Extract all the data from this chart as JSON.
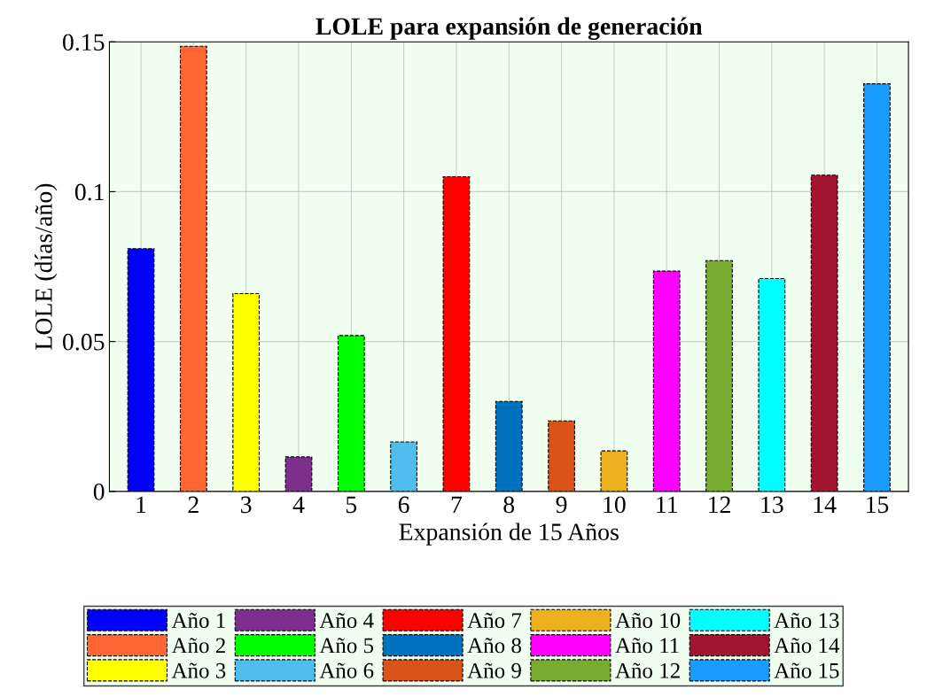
{
  "chart_data": {
    "type": "bar",
    "title": "LOLE para expansión de generación",
    "xlabel": "Expansión de 15 Años",
    "ylabel": "LOLE (días/año)",
    "categories": [
      "1",
      "2",
      "3",
      "4",
      "5",
      "6",
      "7",
      "8",
      "9",
      "10",
      "11",
      "12",
      "13",
      "14",
      "15"
    ],
    "series": [
      {
        "name": "Año 1",
        "color": "#0000ff",
        "values": [
          0.081,
          null,
          null,
          null,
          null,
          null,
          null,
          null,
          null,
          null,
          null,
          null,
          null,
          null,
          null
        ]
      },
      {
        "name": "Año 2",
        "color": "#ff6633",
        "values": [
          null,
          0.1485,
          null,
          null,
          null,
          null,
          null,
          null,
          null,
          null,
          null,
          null,
          null,
          null,
          null
        ]
      },
      {
        "name": "Año 3",
        "color": "#ffff00",
        "values": [
          null,
          null,
          0.066,
          null,
          null,
          null,
          null,
          null,
          null,
          null,
          null,
          null,
          null,
          null,
          null
        ]
      },
      {
        "name": "Año 4",
        "color": "#7e2f8e",
        "values": [
          null,
          null,
          null,
          0.0115,
          null,
          null,
          null,
          null,
          null,
          null,
          null,
          null,
          null,
          null,
          null
        ]
      },
      {
        "name": "Año 5",
        "color": "#00ff00",
        "values": [
          null,
          null,
          null,
          null,
          0.052,
          null,
          null,
          null,
          null,
          null,
          null,
          null,
          null,
          null,
          null
        ]
      },
      {
        "name": "Año 6",
        "color": "#4dbeee",
        "values": [
          null,
          null,
          null,
          null,
          null,
          0.0165,
          null,
          null,
          null,
          null,
          null,
          null,
          null,
          null,
          null
        ]
      },
      {
        "name": "Año 7",
        "color": "#ff0000",
        "values": [
          null,
          null,
          null,
          null,
          null,
          null,
          0.105,
          null,
          null,
          null,
          null,
          null,
          null,
          null,
          null
        ]
      },
      {
        "name": "Año 8",
        "color": "#0072bd",
        "values": [
          null,
          null,
          null,
          null,
          null,
          null,
          null,
          0.03,
          null,
          null,
          null,
          null,
          null,
          null,
          null
        ]
      },
      {
        "name": "Año 9",
        "color": "#d95319",
        "values": [
          null,
          null,
          null,
          null,
          null,
          null,
          null,
          null,
          0.0235,
          null,
          null,
          null,
          null,
          null,
          null
        ]
      },
      {
        "name": "Año 10",
        "color": "#edb120",
        "values": [
          null,
          null,
          null,
          null,
          null,
          null,
          null,
          null,
          null,
          0.0135,
          null,
          null,
          null,
          null,
          null
        ]
      },
      {
        "name": "Año 11",
        "color": "#ff00ff",
        "values": [
          null,
          null,
          null,
          null,
          null,
          null,
          null,
          null,
          null,
          null,
          0.0735,
          null,
          null,
          null,
          null
        ]
      },
      {
        "name": "Año 12",
        "color": "#77ac30",
        "values": [
          null,
          null,
          null,
          null,
          null,
          null,
          null,
          null,
          null,
          null,
          null,
          0.077,
          null,
          null,
          null
        ]
      },
      {
        "name": "Año 13",
        "color": "#00ffff",
        "values": [
          null,
          null,
          null,
          null,
          null,
          null,
          null,
          null,
          null,
          null,
          null,
          null,
          0.071,
          null,
          null
        ]
      },
      {
        "name": "Año 14",
        "color": "#a2142f",
        "values": [
          null,
          null,
          null,
          null,
          null,
          null,
          null,
          null,
          null,
          null,
          null,
          null,
          null,
          0.1055,
          null
        ]
      },
      {
        "name": "Año 15",
        "color": "#1a9bff",
        "values": [
          null,
          null,
          null,
          null,
          null,
          null,
          null,
          null,
          null,
          null,
          null,
          null,
          null,
          null,
          0.136
        ]
      }
    ],
    "ylim": [
      0,
      0.15
    ],
    "yticks": [
      0,
      0.05,
      0.1,
      0.15
    ],
    "grid": true,
    "legend": "bottom",
    "line_style": "dashed"
  }
}
